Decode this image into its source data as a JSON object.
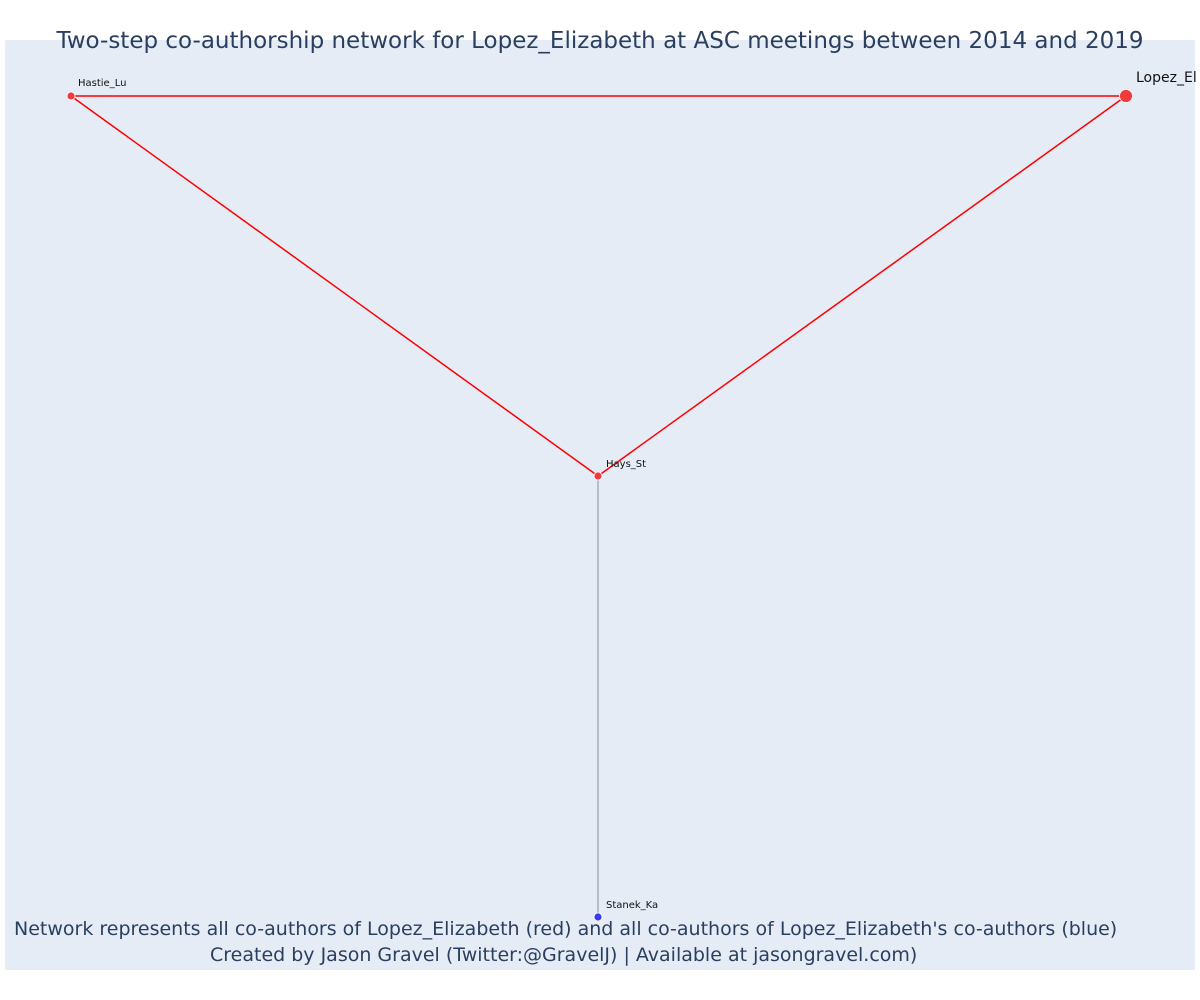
{
  "title": "Two-step co-authorship network for Lopez_Elizabeth at ASC meetings between 2014 and 2019",
  "caption_line1": "Network represents all co-authors of Lopez_Elizabeth (red) and all co-authors of Lopez_Elizabeth's co-authors (blue)",
  "caption_line2": "Created by Jason Gravel (Twitter:@GravelJ) | Available at jasongravel.com)",
  "colors": {
    "background": "#e5ecf6",
    "title_text": "#2a3f5f",
    "coauthor": "#ef3b3b",
    "second_step": "#3b3bef",
    "edge_direct": "#ff0000",
    "edge_indirect": "#8a8f99"
  },
  "nodes": [
    {
      "id": "Hastie_Lu",
      "label": "Hastie_Lu",
      "group": "coauthor"
    },
    {
      "id": "Lopez_El",
      "label": "Lopez_El",
      "group": "focal"
    },
    {
      "id": "Hays_St",
      "label": "Hays_St",
      "group": "coauthor"
    },
    {
      "id": "Stanek_Ka",
      "label": "Stanek_Ka",
      "group": "second_step"
    }
  ],
  "edges": [
    {
      "source": "Hastie_Lu",
      "target": "Lopez_El",
      "type": "direct"
    },
    {
      "source": "Hastie_Lu",
      "target": "Hays_St",
      "type": "direct"
    },
    {
      "source": "Lopez_El",
      "target": "Hays_St",
      "type": "direct"
    },
    {
      "source": "Hays_St",
      "target": "Stanek_Ka",
      "type": "indirect"
    }
  ]
}
